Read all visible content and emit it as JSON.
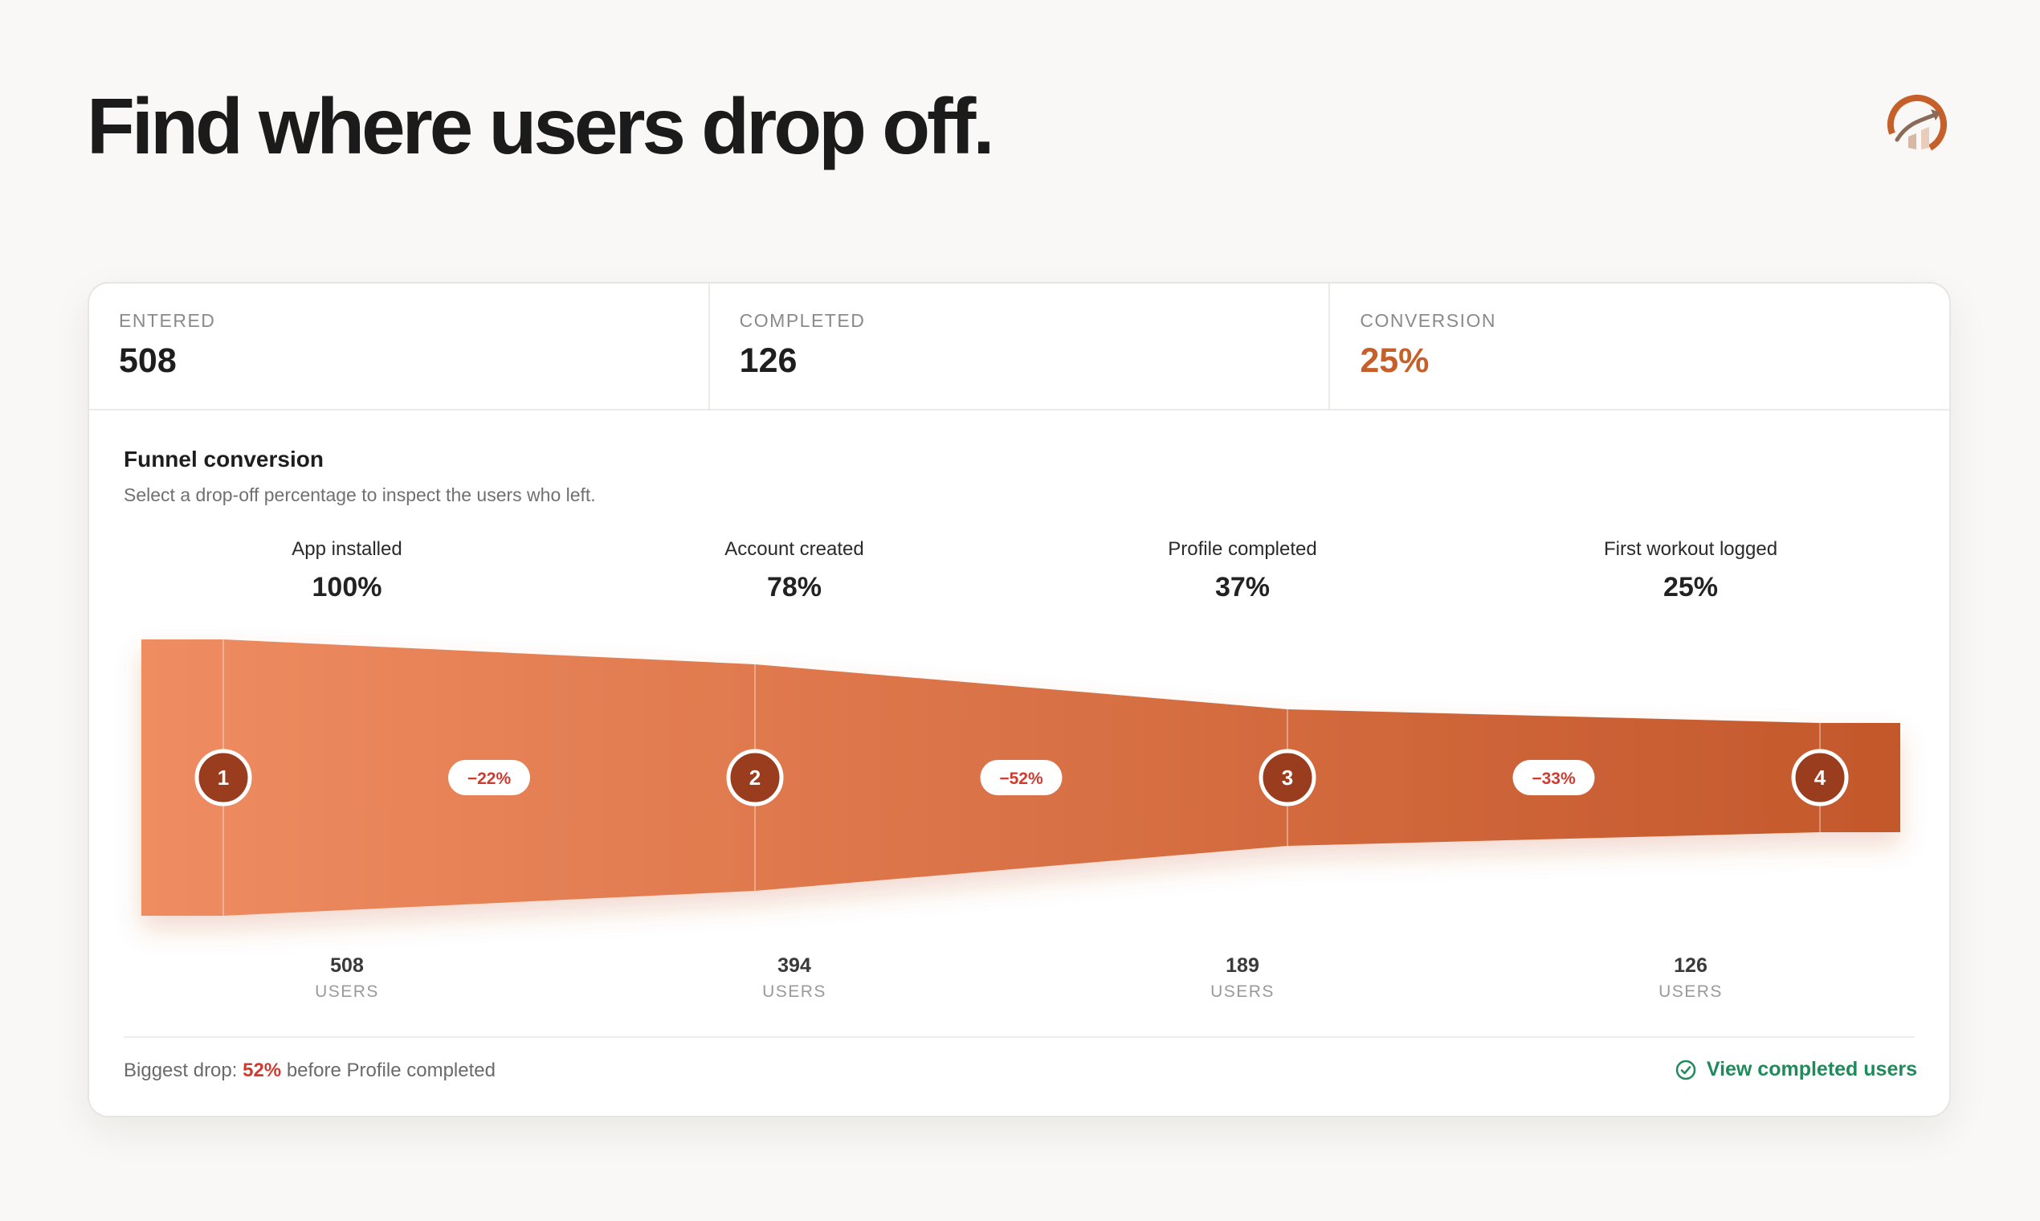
{
  "header": {
    "title": "Find where users drop off."
  },
  "stats": [
    {
      "label": "ENTERED",
      "value": "508"
    },
    {
      "label": "COMPLETED",
      "value": "126"
    },
    {
      "label": "CONVERSION",
      "value": "25%"
    }
  ],
  "funnel": {
    "title": "Funnel conversion",
    "subtitle": "Select a drop-off percentage to inspect the users who left.",
    "unit_label": "USERS",
    "colors": {
      "start": "#ef8c61",
      "end": "#c3582b",
      "marker": "#9a3d1e",
      "drop_text": "#d03b2f"
    },
    "steps": [
      {
        "number": "1",
        "name": "App installed",
        "percent": "100%",
        "users": "508"
      },
      {
        "number": "2",
        "name": "Account created",
        "percent": "78%",
        "users": "394"
      },
      {
        "number": "3",
        "name": "Profile completed",
        "percent": "37%",
        "users": "189"
      },
      {
        "number": "4",
        "name": "First workout logged",
        "percent": "25%",
        "users": "126"
      }
    ],
    "drops": [
      "−22%",
      "−52%",
      "−33%"
    ]
  },
  "footer": {
    "prefix": "Biggest drop:",
    "drop_value": "52%",
    "suffix": "before Profile completed",
    "link_label": "View completed users"
  },
  "chart_data": {
    "type": "funnel",
    "categories": [
      "App installed",
      "Account created",
      "Profile completed",
      "First workout logged"
    ],
    "values": [
      508,
      394,
      189,
      126
    ],
    "percentages": [
      100,
      78,
      37,
      25
    ],
    "drop_offs": [
      -22,
      -52,
      -33
    ]
  }
}
